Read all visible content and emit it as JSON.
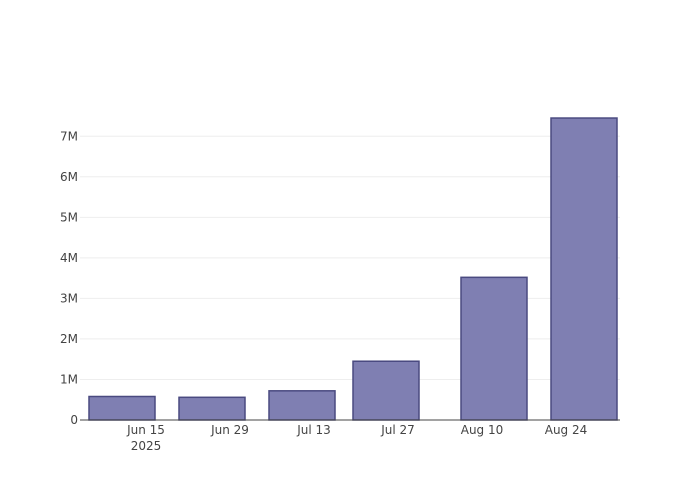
{
  "chart_data": {
    "type": "bar",
    "title": "",
    "xlabel": "",
    "ylabel": "",
    "x": [
      "2025-06-11",
      "2025-06-26",
      "2025-07-11",
      "2025-07-25",
      "2025-08-12",
      "2025-08-27"
    ],
    "values": [
      580000,
      560000,
      720000,
      1450000,
      3520000,
      7450000
    ],
    "bar_width_days": 11,
    "xlim": [
      "2025-06-04",
      "2025-09-02"
    ],
    "ylim": [
      0,
      7500000
    ],
    "x_ticks": [
      {
        "date": "2025-06-15",
        "label": "Jun 15",
        "sublabel": "2025"
      },
      {
        "date": "2025-06-29",
        "label": "Jun 29"
      },
      {
        "date": "2025-07-13",
        "label": "Jul 13"
      },
      {
        "date": "2025-07-27",
        "label": "Jul 27"
      },
      {
        "date": "2025-08-10",
        "label": "Aug 10"
      },
      {
        "date": "2025-08-24",
        "label": "Aug 24"
      }
    ],
    "y_ticks": [
      {
        "value": 0,
        "label": "0"
      },
      {
        "value": 1000000,
        "label": "1M"
      },
      {
        "value": 2000000,
        "label": "2M"
      },
      {
        "value": 3000000,
        "label": "3M"
      },
      {
        "value": 4000000,
        "label": "4M"
      },
      {
        "value": 5000000,
        "label": "5M"
      },
      {
        "value": 6000000,
        "label": "6M"
      },
      {
        "value": 7000000,
        "label": "7M"
      }
    ],
    "grid": true,
    "legend": false,
    "colors": {
      "bar_fill": "#7f7fb2",
      "bar_stroke": "#4a4a80"
    }
  }
}
